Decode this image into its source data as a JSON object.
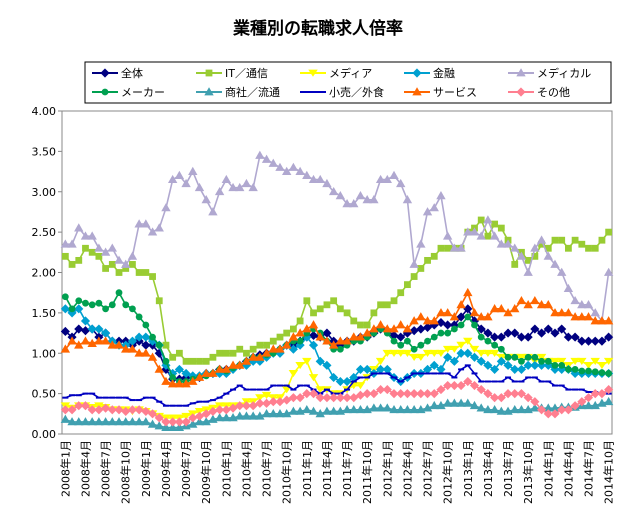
{
  "chart_data": {
    "type": "line",
    "title": "業種別の転職求人倍率",
    "categories": [
      "2008年1月",
      null,
      null,
      "2008年4月",
      null,
      null,
      "2008年7月",
      null,
      null,
      "2008年10月",
      null,
      null,
      "2009年1月",
      null,
      null,
      "2009年4月",
      null,
      null,
      "2009年7月",
      null,
      null,
      "2009年10月",
      null,
      null,
      "2010年1月",
      null,
      null,
      "2010年4月",
      null,
      null,
      "2010年7月",
      null,
      null,
      "2010年10月",
      null,
      null,
      "2011年1月",
      null,
      null,
      "2011年4月",
      null,
      null,
      "2011年7月",
      null,
      null,
      "2011年10月",
      null,
      null,
      "2012年1月",
      null,
      null,
      "2012年4月",
      null,
      null,
      "2012年7月",
      null,
      null,
      "2012年10月",
      null,
      null,
      "2013年1月",
      null,
      null,
      "2013年4月",
      null,
      null,
      "2013年7月",
      null,
      null,
      "2013年10月",
      null,
      null,
      "2014年1月",
      null,
      null,
      "2014年4月",
      null,
      null,
      "2014年7月",
      null,
      null,
      "2014年10月"
    ],
    "ylim": [
      0,
      4
    ],
    "yticks": [
      {
        "value": 0,
        "label": "0.00"
      },
      {
        "value": 0.5,
        "label": "0.50"
      },
      {
        "value": 1,
        "label": "1.00"
      },
      {
        "value": 1.5,
        "label": "1.50"
      },
      {
        "value": 2,
        "label": "2.00"
      },
      {
        "value": 2.5,
        "label": "2.50"
      },
      {
        "value": 3,
        "label": "3.00"
      },
      {
        "value": 3.5,
        "label": "3.50"
      },
      {
        "value": 4,
        "label": "4.00"
      }
    ],
    "grid": false,
    "series": [
      {
        "name": "全体",
        "color": "#000080",
        "marker": "diamond",
        "values": [
          1.27,
          1.2,
          1.3,
          1.28,
          1.3,
          1.2,
          1.25,
          1.15,
          1.15,
          1.15,
          1.1,
          1.15,
          1.1,
          1.1,
          1.0,
          0.8,
          0.68,
          0.68,
          0.7,
          0.7,
          0.7,
          0.75,
          0.75,
          0.8,
          0.8,
          0.82,
          0.85,
          0.9,
          0.95,
          0.98,
          1.0,
          1.02,
          1.05,
          1.1,
          1.1,
          1.15,
          1.2,
          1.22,
          1.2,
          1.25,
          1.15,
          1.1,
          1.15,
          1.15,
          1.2,
          1.2,
          1.25,
          1.3,
          1.28,
          1.22,
          1.2,
          1.25,
          1.28,
          1.3,
          1.32,
          1.35,
          1.38,
          1.35,
          1.35,
          1.45,
          1.55,
          1.4,
          1.3,
          1.25,
          1.2,
          1.2,
          1.25,
          1.25,
          1.2,
          1.2,
          1.3,
          1.25,
          1.3,
          1.25,
          1.3,
          1.2,
          1.2,
          1.15,
          1.15,
          1.15,
          1.15,
          1.2
        ]
      },
      {
        "name": "IT／通信",
        "color": "#99cc33",
        "marker": "square",
        "values": [
          2.2,
          2.1,
          2.15,
          2.3,
          2.25,
          2.2,
          2.05,
          2.1,
          2.0,
          2.05,
          2.1,
          2.0,
          2.0,
          1.95,
          1.65,
          1.1,
          0.95,
          1.0,
          0.9,
          0.9,
          0.9,
          0.9,
          0.95,
          1.0,
          1.0,
          1.0,
          1.05,
          1.0,
          1.05,
          1.1,
          1.1,
          1.15,
          1.2,
          1.25,
          1.3,
          1.4,
          1.65,
          1.5,
          1.55,
          1.6,
          1.65,
          1.55,
          1.5,
          1.4,
          1.35,
          1.35,
          1.5,
          1.6,
          1.6,
          1.65,
          1.75,
          1.85,
          1.95,
          2.05,
          2.15,
          2.2,
          2.3,
          2.3,
          2.3,
          2.3,
          2.5,
          2.55,
          2.65,
          2.45,
          2.6,
          2.55,
          2.4,
          2.1,
          2.25,
          2.15,
          2.2,
          2.35,
          2.3,
          2.4,
          2.4,
          2.3,
          2.4,
          2.35,
          2.3,
          2.3,
          2.4,
          2.5
        ]
      },
      {
        "name": "メディア",
        "color": "#ffff00",
        "marker": "tridown",
        "values": [
          0.35,
          0.32,
          0.35,
          0.35,
          0.33,
          0.35,
          0.33,
          0.3,
          0.3,
          0.3,
          0.28,
          0.3,
          0.28,
          0.25,
          0.22,
          0.2,
          0.2,
          0.2,
          0.22,
          0.25,
          0.28,
          0.3,
          0.32,
          0.35,
          0.35,
          0.35,
          0.35,
          0.4,
          0.4,
          0.45,
          0.48,
          0.45,
          0.45,
          0.55,
          0.75,
          0.85,
          0.9,
          0.7,
          0.55,
          0.55,
          0.5,
          0.5,
          0.55,
          0.6,
          0.6,
          0.7,
          0.8,
          0.9,
          1.0,
          1.0,
          1.0,
          1.0,
          0.95,
          0.95,
          1.0,
          1.0,
          1.0,
          1.05,
          1.05,
          1.1,
          1.15,
          1.05,
          1.0,
          1.0,
          1.0,
          0.95,
          0.95,
          0.95,
          0.95,
          0.95,
          0.9,
          0.95,
          0.9,
          0.9,
          0.9,
          0.85,
          0.9,
          0.9,
          0.85,
          0.9,
          0.85,
          0.9
        ]
      },
      {
        "name": "金融",
        "color": "#00a0d0",
        "marker": "diamond",
        "values": [
          1.55,
          1.5,
          1.55,
          1.4,
          1.3,
          1.3,
          1.25,
          1.15,
          1.1,
          1.1,
          1.15,
          1.2,
          1.2,
          1.15,
          1.1,
          0.85,
          0.75,
          0.8,
          0.75,
          0.72,
          0.72,
          0.75,
          0.75,
          0.75,
          0.75,
          0.8,
          0.85,
          0.85,
          0.9,
          0.9,
          0.95,
          1.0,
          1.0,
          1.1,
          1.05,
          1.1,
          1.2,
          1.1,
          0.9,
          0.85,
          0.7,
          0.65,
          0.65,
          0.7,
          0.8,
          0.8,
          0.75,
          0.8,
          0.8,
          0.7,
          0.65,
          0.7,
          0.75,
          0.75,
          0.8,
          0.85,
          0.8,
          0.95,
          0.9,
          1.0,
          1.0,
          0.95,
          0.9,
          0.85,
          0.8,
          0.9,
          0.85,
          0.8,
          0.8,
          0.85,
          0.85,
          0.85,
          0.85,
          0.8,
          0.8,
          0.8,
          0.75,
          0.75,
          0.75,
          0.75,
          0.75,
          0.75
        ]
      },
      {
        "name": "メディカル",
        "color": "#b0a8d0",
        "marker": "triangle",
        "values": [
          2.35,
          2.35,
          2.55,
          2.45,
          2.45,
          2.3,
          2.25,
          2.3,
          2.15,
          2.1,
          2.2,
          2.6,
          2.6,
          2.5,
          2.55,
          2.8,
          3.15,
          3.2,
          3.1,
          3.25,
          3.05,
          2.9,
          2.75,
          3.0,
          3.15,
          3.05,
          3.05,
          3.1,
          3.05,
          3.45,
          3.4,
          3.35,
          3.3,
          3.25,
          3.3,
          3.25,
          3.2,
          3.15,
          3.15,
          3.1,
          3.0,
          2.95,
          2.85,
          2.85,
          2.95,
          2.9,
          2.9,
          3.15,
          3.15,
          3.2,
          3.1,
          2.9,
          2.1,
          2.35,
          2.75,
          2.8,
          2.95,
          2.45,
          2.3,
          2.3,
          2.5,
          2.5,
          2.45,
          2.65,
          2.45,
          2.35,
          2.35,
          2.3,
          2.2,
          2.0,
          2.3,
          2.4,
          2.2,
          2.1,
          2.0,
          1.8,
          1.65,
          1.6,
          1.6,
          1.5,
          1.4,
          2.0
        ]
      },
      {
        "name": "メーカー",
        "color": "#00a050",
        "marker": "circle",
        "values": [
          1.7,
          1.55,
          1.65,
          1.62,
          1.6,
          1.62,
          1.55,
          1.6,
          1.75,
          1.6,
          1.55,
          1.45,
          1.35,
          1.2,
          1.1,
          0.9,
          0.7,
          0.65,
          0.65,
          0.68,
          0.7,
          0.72,
          0.75,
          0.8,
          0.78,
          0.82,
          0.85,
          0.9,
          0.95,
          0.95,
          0.98,
          1.0,
          1.05,
          1.1,
          1.15,
          1.15,
          1.25,
          1.3,
          1.25,
          1.15,
          1.05,
          1.05,
          1.1,
          1.15,
          1.15,
          1.2,
          1.25,
          1.3,
          1.25,
          1.15,
          1.1,
          1.15,
          1.05,
          1.1,
          1.15,
          1.2,
          1.25,
          1.25,
          1.3,
          1.35,
          1.45,
          1.35,
          1.2,
          1.15,
          1.1,
          1.05,
          0.95,
          0.95,
          0.9,
          0.95,
          0.95,
          0.9,
          0.9,
          0.85,
          0.85,
          0.8,
          0.8,
          0.78,
          0.78,
          0.77,
          0.76,
          0.75
        ]
      },
      {
        "name": "商社／流通",
        "color": "#40a0b0",
        "marker": "triangle",
        "values": [
          0.18,
          0.15,
          0.15,
          0.15,
          0.15,
          0.15,
          0.15,
          0.15,
          0.15,
          0.15,
          0.15,
          0.15,
          0.15,
          0.12,
          0.1,
          0.08,
          0.08,
          0.08,
          0.1,
          0.12,
          0.15,
          0.15,
          0.18,
          0.2,
          0.2,
          0.2,
          0.22,
          0.22,
          0.22,
          0.22,
          0.25,
          0.25,
          0.25,
          0.25,
          0.28,
          0.28,
          0.3,
          0.28,
          0.25,
          0.28,
          0.28,
          0.28,
          0.3,
          0.3,
          0.3,
          0.3,
          0.32,
          0.32,
          0.32,
          0.3,
          0.3,
          0.3,
          0.3,
          0.3,
          0.32,
          0.35,
          0.35,
          0.38,
          0.38,
          0.38,
          0.38,
          0.35,
          0.32,
          0.3,
          0.3,
          0.28,
          0.28,
          0.3,
          0.3,
          0.3,
          0.32,
          0.32,
          0.32,
          0.32,
          0.33,
          0.33,
          0.33,
          0.35,
          0.35,
          0.35,
          0.38,
          0.4
        ]
      },
      {
        "name": "小売／外食",
        "color": "#0000c0",
        "marker": "dash",
        "values": [
          0.45,
          0.48,
          0.48,
          0.5,
          0.5,
          0.45,
          0.45,
          0.45,
          0.45,
          0.45,
          0.42,
          0.42,
          0.45,
          0.45,
          0.4,
          0.35,
          0.35,
          0.35,
          0.35,
          0.38,
          0.4,
          0.4,
          0.42,
          0.45,
          0.5,
          0.55,
          0.6,
          0.55,
          0.55,
          0.55,
          0.55,
          0.6,
          0.6,
          0.6,
          0.55,
          0.6,
          0.6,
          0.55,
          0.5,
          0.55,
          0.5,
          0.5,
          0.55,
          0.65,
          0.7,
          0.7,
          0.75,
          0.75,
          0.75,
          0.7,
          0.65,
          0.7,
          0.75,
          0.75,
          0.75,
          0.75,
          0.75,
          0.75,
          0.7,
          0.8,
          0.85,
          0.75,
          0.65,
          0.65,
          0.65,
          0.65,
          0.7,
          0.65,
          0.65,
          0.7,
          0.7,
          0.65,
          0.65,
          0.6,
          0.6,
          0.55,
          0.55,
          0.55,
          0.52,
          0.52,
          0.5,
          0.5
        ]
      },
      {
        "name": "サービス",
        "color": "#ff6600",
        "marker": "triangle",
        "values": [
          1.05,
          1.15,
          1.1,
          1.15,
          1.12,
          1.15,
          1.15,
          1.1,
          1.1,
          1.05,
          1.05,
          1.0,
          1.0,
          0.95,
          0.8,
          0.65,
          0.62,
          0.62,
          0.62,
          0.65,
          0.7,
          0.75,
          0.75,
          0.8,
          0.8,
          0.85,
          0.85,
          0.9,
          0.95,
          0.95,
          1.0,
          1.05,
          1.05,
          1.1,
          1.2,
          1.25,
          1.3,
          1.35,
          1.2,
          1.15,
          1.1,
          1.15,
          1.15,
          1.2,
          1.2,
          1.25,
          1.3,
          1.35,
          1.3,
          1.3,
          1.35,
          1.3,
          1.4,
          1.45,
          1.4,
          1.4,
          1.5,
          1.5,
          1.45,
          1.6,
          1.75,
          1.5,
          1.45,
          1.45,
          1.55,
          1.55,
          1.5,
          1.55,
          1.65,
          1.6,
          1.65,
          1.6,
          1.6,
          1.5,
          1.5,
          1.5,
          1.45,
          1.45,
          1.45,
          1.4,
          1.4,
          1.4
        ]
      },
      {
        "name": "その他",
        "color": "#ff7f90",
        "marker": "diamond",
        "values": [
          0.3,
          0.3,
          0.35,
          0.35,
          0.3,
          0.3,
          0.32,
          0.3,
          0.3,
          0.28,
          0.3,
          0.3,
          0.28,
          0.25,
          0.2,
          0.15,
          0.15,
          0.15,
          0.15,
          0.2,
          0.22,
          0.25,
          0.28,
          0.3,
          0.3,
          0.32,
          0.35,
          0.35,
          0.35,
          0.38,
          0.38,
          0.4,
          0.4,
          0.42,
          0.45,
          0.45,
          0.5,
          0.5,
          0.45,
          0.45,
          0.45,
          0.45,
          0.45,
          0.45,
          0.48,
          0.5,
          0.5,
          0.55,
          0.55,
          0.5,
          0.5,
          0.5,
          0.5,
          0.5,
          0.5,
          0.5,
          0.55,
          0.6,
          0.6,
          0.6,
          0.65,
          0.6,
          0.55,
          0.5,
          0.45,
          0.45,
          0.5,
          0.5,
          0.5,
          0.45,
          0.4,
          0.3,
          0.25,
          0.25,
          0.3,
          0.3,
          0.35,
          0.4,
          0.45,
          0.5,
          0.5,
          0.55
        ]
      }
    ]
  }
}
